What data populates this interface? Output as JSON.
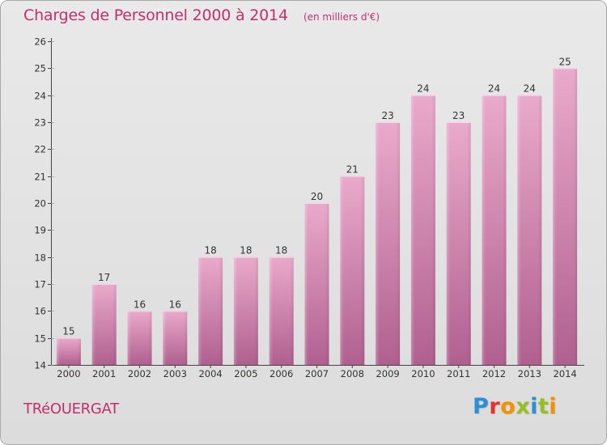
{
  "title": "Charges de Personnel 2000 à 2014",
  "unit_label": "(en milliers d'€)",
  "commune": "TRéOUERGAT",
  "brand": {
    "letters": [
      "P",
      "r",
      "o",
      "x",
      "i",
      "t",
      "i"
    ],
    "colors": [
      "#2a8fd6",
      "#e7332a",
      "#f39200",
      "#95c11f",
      "#2a8fd6",
      "#95c11f",
      "#f39200"
    ]
  },
  "colors": {
    "bar_top": "#eaaacb",
    "bar_bottom": "#b0608f",
    "title": "#c0306f",
    "axis": "#444444"
  },
  "chart_data": {
    "type": "bar",
    "categories": [
      "2000",
      "2001",
      "2002",
      "2003",
      "2004",
      "2005",
      "2006",
      "2007",
      "2008",
      "2009",
      "2010",
      "2011",
      "2012",
      "2013",
      "2014"
    ],
    "values": [
      15,
      17,
      16,
      16,
      18,
      18,
      18,
      20,
      21,
      23,
      24,
      23,
      24,
      24,
      25
    ],
    "title": "Charges de Personnel 2000 à 2014",
    "subtitle": "(en milliers d'€)",
    "xlabel": "",
    "ylabel": "",
    "ylim": [
      14,
      26
    ],
    "yticks": [
      14,
      15,
      16,
      17,
      18,
      19,
      20,
      21,
      22,
      23,
      24,
      25,
      26
    ],
    "grid": false,
    "legend": "none",
    "data_labels": true
  }
}
